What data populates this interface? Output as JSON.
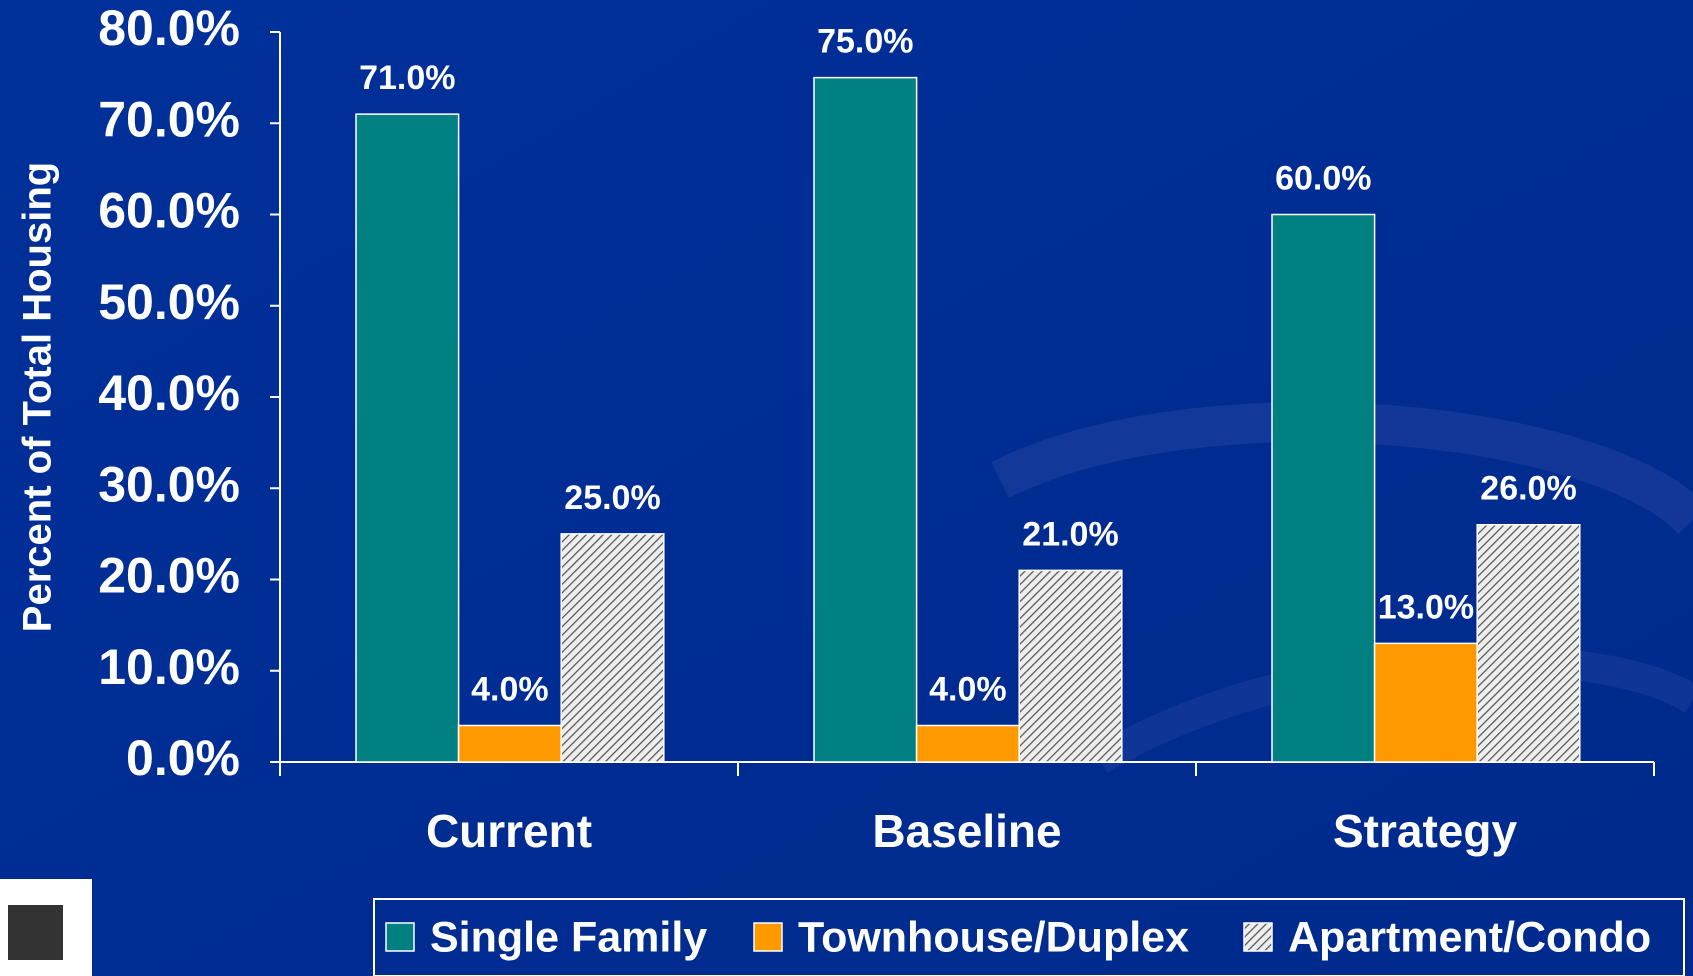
{
  "chart_data": {
    "type": "bar",
    "y_label": "Percent of Total Housing",
    "categories": [
      "Current",
      "Baseline",
      "Strategy"
    ],
    "series": [
      {
        "name": "Single Family",
        "color": "#008080",
        "values": [
          71,
          75,
          60
        ],
        "value_labels": [
          "71.0%",
          "75.0%",
          "60.0%"
        ]
      },
      {
        "name": "Townhouse/Duplex",
        "color": "#ff9900",
        "values": [
          4,
          4,
          13
        ],
        "value_labels": [
          "4.0%",
          "4.0%",
          "13.0%"
        ]
      },
      {
        "name": "Apartment/Condo",
        "color": "hatch",
        "values": [
          25,
          21,
          26
        ],
        "value_labels": [
          "25.0%",
          "21.0%",
          "26.0%"
        ]
      }
    ],
    "ylim": [
      0,
      80
    ],
    "yticks": [
      {
        "value": 0,
        "label": "0.0%"
      },
      {
        "value": 10,
        "label": "10.0%"
      },
      {
        "value": 20,
        "label": "20.0%"
      },
      {
        "value": 30,
        "label": "30.0%"
      },
      {
        "value": 40,
        "label": "40.0%"
      },
      {
        "value": 50,
        "label": "50.0%"
      },
      {
        "value": 60,
        "label": "60.0%"
      },
      {
        "value": 70,
        "label": "70.0%"
      },
      {
        "value": 80,
        "label": "80.0%"
      }
    ],
    "legend": "bottom"
  }
}
